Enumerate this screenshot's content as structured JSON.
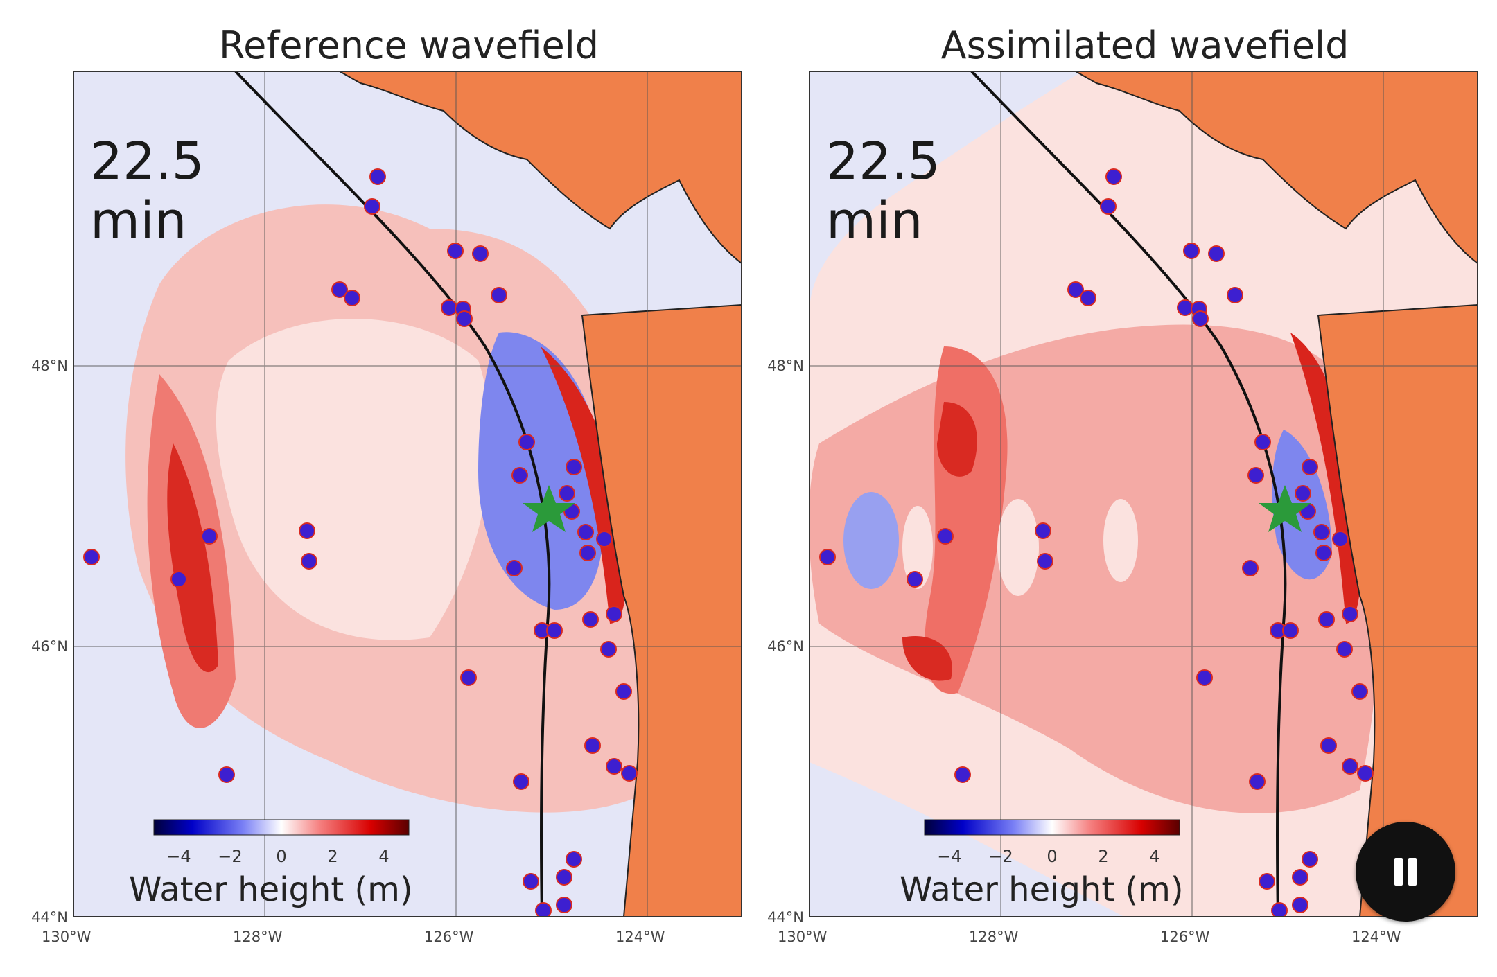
{
  "panels": [
    {
      "title": "Reference wavefield",
      "time_label": "22.5 min",
      "colorbar_label": "Water height (m)",
      "colorbar_ticks": [
        "−4",
        "−2",
        "0",
        "2",
        "4"
      ],
      "x_ticks": [
        "130°W",
        "128°W",
        "126°W",
        "124°W"
      ],
      "y_ticks": [
        "48°N",
        "46°N",
        "44°N"
      ]
    },
    {
      "title": "Assimilated wavefield",
      "time_label": "22.5 min",
      "colorbar_label": "Water height (m)",
      "colorbar_ticks": [
        "−4",
        "−2",
        "0",
        "2",
        "4"
      ],
      "x_ticks": [
        "130°W",
        "128°W",
        "126°W",
        "124°W"
      ],
      "y_ticks": [
        "48°N",
        "46°N",
        "44°N"
      ]
    }
  ],
  "controls": {
    "pause_icon": "pause-icon"
  },
  "colors": {
    "land": "#f0804a",
    "ocean_neutral": "#e4e6f7",
    "positive": "#e23a35",
    "negative": "#6f7ff0",
    "stations": "#3d1fd0",
    "epicenter": "#2b9a3a"
  }
}
